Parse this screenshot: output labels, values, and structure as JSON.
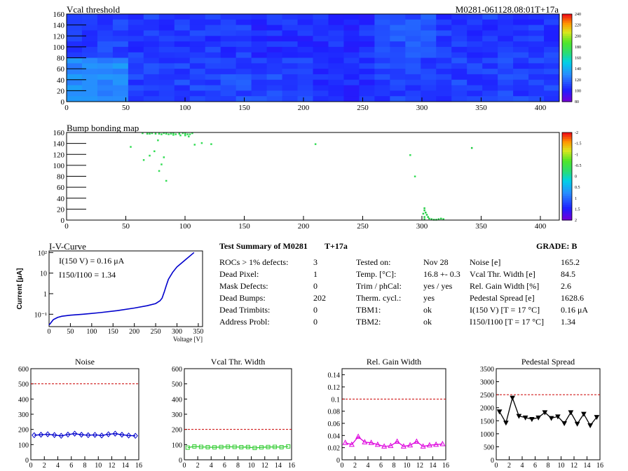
{
  "header": {
    "left_title": "Vcal threshold",
    "right_id": "M0281-061128.08:01T+17a"
  },
  "chart_data": [
    {
      "type": "heatmap",
      "title": "Vcal threshold",
      "x_ticks": [
        0,
        50,
        100,
        150,
        200,
        250,
        300,
        350,
        400
      ],
      "y_ticks": [
        0,
        20,
        40,
        60,
        80,
        100,
        120,
        140,
        160
      ],
      "xlim": [
        0,
        416
      ],
      "ylim": [
        0,
        160
      ],
      "color_scale": {
        "min": 80,
        "max": 240,
        "ticks": [
          80,
          100,
          120,
          140,
          160,
          180,
          200,
          220,
          240
        ]
      },
      "roc_grid": {
        "cols": 8,
        "rows": 2
      },
      "roc_means": [
        [
          108,
          106,
          106,
          104,
          104,
          112,
          106,
          106
        ],
        [
          128,
          108,
          110,
          110,
          104,
          108,
          108,
          108
        ]
      ]
    },
    {
      "type": "heatmap",
      "title": "Bump bonding map",
      "x_ticks": [
        0,
        50,
        100,
        150,
        200,
        250,
        300,
        350,
        400
      ],
      "y_ticks": [
        0,
        20,
        40,
        60,
        80,
        100,
        120,
        140,
        160
      ],
      "xlim": [
        0,
        416
      ],
      "ylim": [
        0,
        160
      ],
      "color_scale": {
        "min": -2,
        "max": 2,
        "ticks": [
          "2",
          "1.5",
          "1",
          "0.5",
          "0",
          "-0.5",
          "-1",
          "-1.5",
          "-2"
        ]
      },
      "dead_bumps": [
        [
          64,
          159
        ],
        [
          68,
          158
        ],
        [
          70,
          158
        ],
        [
          72,
          159
        ],
        [
          75,
          158
        ],
        [
          78,
          158
        ],
        [
          80,
          157
        ],
        [
          82,
          159
        ],
        [
          84,
          158
        ],
        [
          86,
          157
        ],
        [
          88,
          158
        ],
        [
          90,
          159
        ],
        [
          92,
          157
        ],
        [
          95,
          158
        ],
        [
          98,
          159
        ],
        [
          100,
          158
        ],
        [
          102,
          157
        ],
        [
          104,
          157
        ],
        [
          106,
          159
        ],
        [
          100,
          155
        ],
        [
          103,
          153
        ],
        [
          96,
          155
        ],
        [
          90,
          156
        ],
        [
          114,
          141
        ],
        [
          122,
          139
        ],
        [
          108,
          138
        ],
        [
          77,
          146
        ],
        [
          54,
          134
        ],
        [
          74,
          126
        ],
        [
          70,
          118
        ],
        [
          65,
          110
        ],
        [
          82,
          115
        ],
        [
          80,
          102
        ],
        [
          78,
          90
        ],
        [
          84,
          72
        ],
        [
          210,
          139
        ],
        [
          290,
          119
        ],
        [
          294,
          80
        ],
        [
          342,
          132
        ],
        [
          302,
          22
        ],
        [
          302,
          18
        ],
        [
          303,
          14
        ],
        [
          304,
          10
        ],
        [
          305,
          6
        ],
        [
          306,
          3
        ],
        [
          308,
          2
        ],
        [
          310,
          1
        ],
        [
          312,
          1
        ],
        [
          314,
          2
        ],
        [
          316,
          3
        ],
        [
          318,
          2
        ],
        [
          302,
          6
        ],
        [
          301,
          12
        ],
        [
          302,
          2
        ]
      ]
    },
    {
      "type": "line",
      "title": "I-V-Curve",
      "xlabel": "Voltage [V]",
      "ylabel": "Current [μA]",
      "xlim": [
        0,
        360
      ],
      "x_ticks": [
        0,
        50,
        100,
        150,
        200,
        250,
        300,
        350
      ],
      "y_log": true,
      "y_tick_labels": [
        "10²",
        "10",
        "1",
        "10⁻¹"
      ],
      "series": [
        {
          "x": [
            0,
            5,
            10,
            20,
            30,
            50,
            80,
            120,
            160,
            200,
            230,
            250,
            260,
            265,
            270,
            275,
            280,
            290,
            300,
            320,
            340
          ],
          "y": [
            0.03,
            0.04,
            0.055,
            0.07,
            0.08,
            0.09,
            0.1,
            0.12,
            0.15,
            0.2,
            0.26,
            0.33,
            0.45,
            0.6,
            1.2,
            2.5,
            5,
            11,
            20,
            45,
            100
          ]
        }
      ],
      "annotations": [
        "I(150 V) = 0.16 μA",
        "I150/I100 = 1.34"
      ]
    },
    {
      "type": "line",
      "title": "Noise",
      "xlim": [
        0,
        16
      ],
      "ylim": [
        0,
        600
      ],
      "x_ticks": [
        0,
        2,
        4,
        6,
        8,
        10,
        12,
        14,
        16
      ],
      "y_ticks": [
        0,
        100,
        200,
        300,
        400,
        500,
        600
      ],
      "limit": 500,
      "series": [
        {
          "x": [
            0.5,
            1.5,
            2.5,
            3.5,
            4.5,
            5.5,
            6.5,
            7.5,
            8.5,
            9.5,
            10.5,
            11.5,
            12.5,
            13.5,
            14.5,
            15.5
          ],
          "y": [
            162,
            165,
            168,
            163,
            158,
            166,
            172,
            165,
            162,
            164,
            160,
            168,
            172,
            165,
            160,
            158
          ]
        }
      ]
    },
    {
      "type": "line",
      "title": "Vcal Thr. Width",
      "xlim": [
        0,
        16
      ],
      "ylim": [
        0,
        600
      ],
      "x_ticks": [
        0,
        2,
        4,
        6,
        8,
        10,
        12,
        14,
        16
      ],
      "y_ticks": [
        0,
        100,
        200,
        300,
        400,
        500,
        600
      ],
      "limit": 200,
      "series": [
        {
          "x": [
            0.5,
            1.5,
            2.5,
            3.5,
            4.5,
            5.5,
            6.5,
            7.5,
            8.5,
            9.5,
            10.5,
            11.5,
            12.5,
            13.5,
            14.5,
            15.5
          ],
          "y": [
            80,
            88,
            85,
            83,
            82,
            84,
            86,
            85,
            83,
            84,
            78,
            82,
            84,
            85,
            83,
            88
          ]
        }
      ]
    },
    {
      "type": "line",
      "title": "Rel. Gain Width",
      "xlim": [
        0,
        16
      ],
      "ylim": [
        0,
        0.15
      ],
      "x_ticks": [
        0,
        2,
        4,
        6,
        8,
        10,
        12,
        14,
        16
      ],
      "y_ticks": [
        "0",
        "0.02",
        "0.04",
        "0.06",
        "0.08",
        "0.1",
        "0.12",
        "0.14"
      ],
      "limit": 0.1,
      "series": [
        {
          "x": [
            0.5,
            1.5,
            2.5,
            3.5,
            4.5,
            5.5,
            6.5,
            7.5,
            8.5,
            9.5,
            10.5,
            11.5,
            12.5,
            13.5,
            14.5,
            15.5
          ],
          "y": [
            0.028,
            0.025,
            0.038,
            0.029,
            0.028,
            0.025,
            0.022,
            0.023,
            0.03,
            0.022,
            0.024,
            0.03,
            0.022,
            0.024,
            0.025,
            0.026
          ]
        }
      ]
    },
    {
      "type": "line",
      "title": "Pedestal Spread",
      "xlim": [
        0,
        16
      ],
      "ylim": [
        0,
        3500
      ],
      "x_ticks": [
        0,
        2,
        4,
        6,
        8,
        10,
        12,
        14,
        16
      ],
      "y_ticks": [
        0,
        500,
        1000,
        1500,
        2000,
        2500,
        3000,
        3500
      ],
      "limit": 2500,
      "series": [
        {
          "x": [
            0.5,
            1.5,
            2.5,
            3.5,
            4.5,
            5.5,
            6.5,
            7.5,
            8.5,
            9.5,
            10.5,
            11.5,
            12.5,
            13.5,
            14.5,
            15.5
          ],
          "y": [
            1850,
            1420,
            2380,
            1680,
            1620,
            1560,
            1620,
            1820,
            1600,
            1660,
            1400,
            1820,
            1380,
            1760,
            1320,
            1640
          ]
        }
      ]
    }
  ],
  "summary": {
    "title": "Test Summary of M0281",
    "tag": "T+17a",
    "grade": "GRADE:  B",
    "left": [
      [
        "ROCs > 1% defects:",
        "3"
      ],
      [
        "Dead Pixel:",
        "1"
      ],
      [
        "Mask Defects:",
        "0"
      ],
      [
        "Dead Bumps:",
        "202"
      ],
      [
        "Dead Trimbits:",
        "0"
      ],
      [
        "Address Probl:",
        "0"
      ]
    ],
    "middle": [
      [
        "Tested on:",
        "Nov 28"
      ],
      [
        "Temp. [°C]:",
        "16.8 +- 0.3"
      ],
      [
        "Trim / phCal:",
        "yes / yes"
      ],
      [
        "Therm. cycl.:",
        "yes"
      ],
      [
        "TBM1:",
        "ok"
      ],
      [
        "TBM2:",
        "ok"
      ]
    ],
    "right": [
      [
        "Noise [e]",
        "165.2"
      ],
      [
        "Vcal Thr. Width [e]",
        "84.5"
      ],
      [
        "Rel. Gain Width [%]",
        "2.6"
      ],
      [
        "Pedestal Spread [e]",
        "1628.6"
      ],
      [
        "I(150 V) [T = 17 °C]",
        "0.16 μA"
      ],
      [
        "I150/I100  [T = 17 °C]",
        "1.34"
      ]
    ]
  },
  "colors": {
    "limit_line": "#cc0000",
    "noise": "#0000cc",
    "vcal": "#33cc33",
    "gain": "#dd00dd",
    "pedestal": "#000000",
    "iv": "#0000cc"
  }
}
